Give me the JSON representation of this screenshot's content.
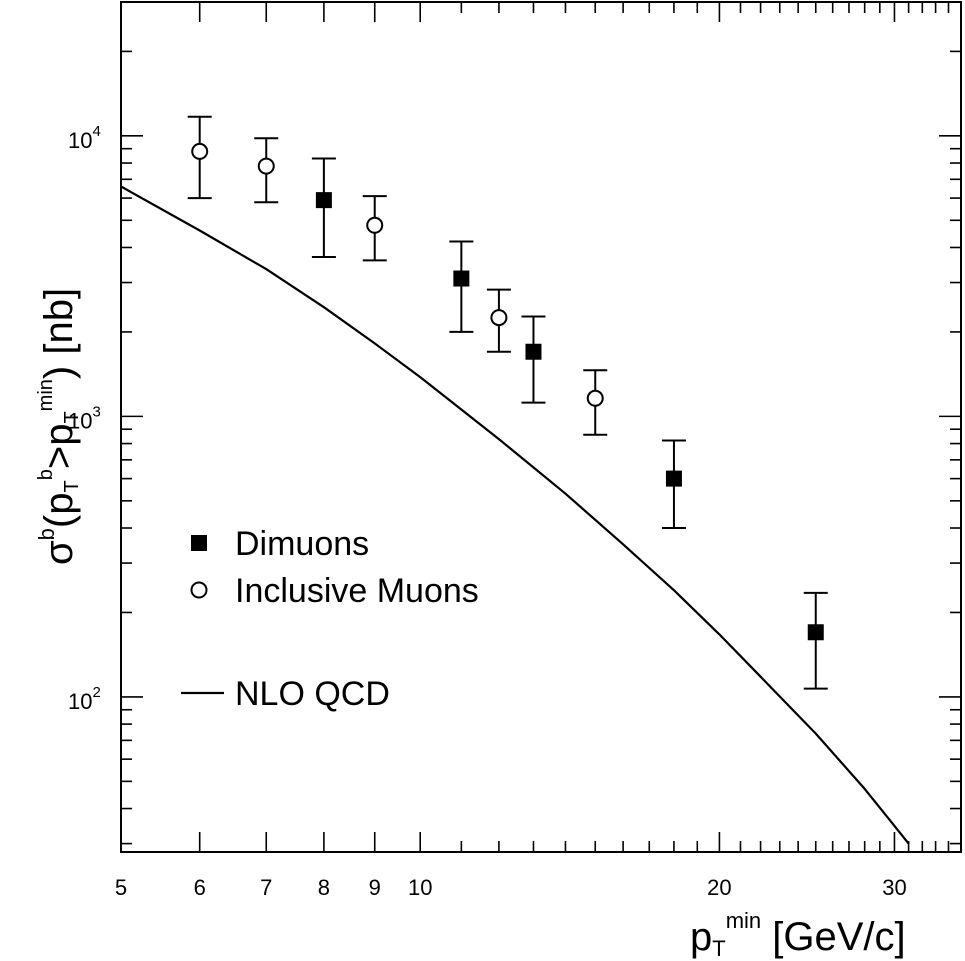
{
  "chart_data": {
    "type": "scatter",
    "x_scale": "log",
    "y_scale": "log",
    "xlim": [
      5,
      35
    ],
    "ylim": [
      28,
      30000
    ],
    "x_ticks_major": [
      5,
      6,
      7,
      8,
      9,
      10,
      20,
      30
    ],
    "x_tick_labels": [
      "5",
      "6",
      "7",
      "8",
      "9",
      "10",
      "20",
      "30"
    ],
    "y_ticks_major": [
      {
        "value": 100,
        "base": "10",
        "exp": "2"
      },
      {
        "value": 1000,
        "base": "10",
        "exp": "3"
      },
      {
        "value": 10000,
        "base": "10",
        "exp": "4"
      }
    ],
    "xlabel": {
      "main": "p",
      "sub": "T",
      "sup": "min",
      "unit": " [GeV/c]"
    },
    "ylabel": {
      "sigma": "σ",
      "sigma_sup": "b",
      "open": "(p",
      "sub1": "T",
      "sup1": "b",
      "gt": ">p",
      "sub2": "T",
      "sup2": "min",
      "close": ") [nb]"
    },
    "grid": false,
    "legend_position": "left-middle",
    "series": [
      {
        "name": "Dimuons",
        "marker": "filled-square",
        "points": [
          {
            "x": 8.0,
            "y": 5900,
            "ylo": 3700,
            "yhi": 8300
          },
          {
            "x": 11.0,
            "y": 3100,
            "ylo": 2000,
            "yhi": 4200
          },
          {
            "x": 13.0,
            "y": 1700,
            "ylo": 1120,
            "yhi": 2270
          },
          {
            "x": 18.0,
            "y": 600,
            "ylo": 400,
            "yhi": 820
          },
          {
            "x": 25.0,
            "y": 170,
            "ylo": 107,
            "yhi": 235
          }
        ]
      },
      {
        "name": "Inclusive Muons",
        "marker": "open-circle",
        "points": [
          {
            "x": 6.0,
            "y": 8800,
            "ylo": 6000,
            "yhi": 11700
          },
          {
            "x": 7.0,
            "y": 7800,
            "ylo": 5800,
            "yhi": 9800
          },
          {
            "x": 9.0,
            "y": 4800,
            "ylo": 3600,
            "yhi": 6100
          },
          {
            "x": 12.0,
            "y": 2250,
            "ylo": 1700,
            "yhi": 2830
          },
          {
            "x": 15.0,
            "y": 1160,
            "ylo": 860,
            "yhi": 1460
          }
        ]
      },
      {
        "name": "NLO QCD",
        "marker": "line",
        "points": [
          {
            "x": 5.0,
            "y": 6600
          },
          {
            "x": 6.0,
            "y": 4600
          },
          {
            "x": 7.0,
            "y": 3350
          },
          {
            "x": 8.0,
            "y": 2450
          },
          {
            "x": 9.0,
            "y": 1820
          },
          {
            "x": 10.0,
            "y": 1380
          },
          {
            "x": 12.0,
            "y": 830
          },
          {
            "x": 14.0,
            "y": 530
          },
          {
            "x": 16.0,
            "y": 350
          },
          {
            "x": 18.0,
            "y": 240
          },
          {
            "x": 20.0,
            "y": 167
          },
          {
            "x": 22.0,
            "y": 118
          },
          {
            "x": 25.0,
            "y": 74
          },
          {
            "x": 28.0,
            "y": 47
          },
          {
            "x": 31.0,
            "y": 30
          }
        ]
      }
    ]
  }
}
